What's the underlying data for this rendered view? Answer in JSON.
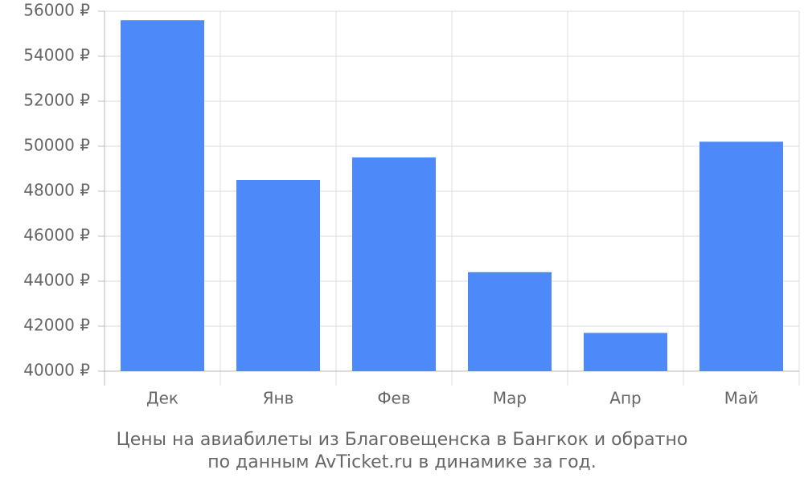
{
  "chart_data": {
    "type": "bar",
    "title_lines": [
      "Цены на авиабилеты из Благовещенска в Бангкок и обратно",
      "по данным AvTicket.ru в динамике за год."
    ],
    "categories": [
      "Дек",
      "Янв",
      "Фев",
      "Мар",
      "Апр",
      "Май"
    ],
    "values": [
      55600,
      48500,
      49500,
      44400,
      41700,
      50200
    ],
    "color": "#4d89f9",
    "ylim": [
      40000,
      56000
    ],
    "yticks": [
      {
        "value": 40000,
        "label": "40000 ₽"
      },
      {
        "value": 42000,
        "label": "42000 ₽"
      },
      {
        "value": 44000,
        "label": "44000 ₽"
      },
      {
        "value": 46000,
        "label": "46000 ₽"
      },
      {
        "value": 48000,
        "label": "48000 ₽"
      },
      {
        "value": 50000,
        "label": "50000 ₽"
      },
      {
        "value": 52000,
        "label": "52000 ₽"
      },
      {
        "value": 54000,
        "label": "54000 ₽"
      },
      {
        "value": 56000,
        "label": "56000 ₽"
      }
    ],
    "grid": true
  }
}
